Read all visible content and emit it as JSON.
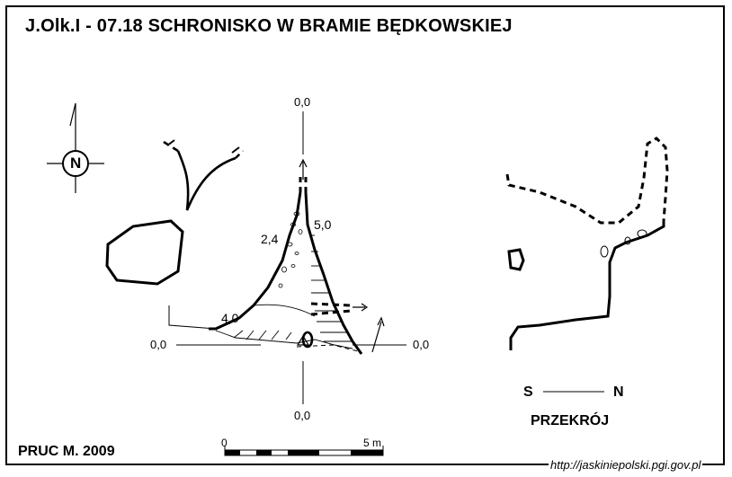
{
  "title": "J.Olk.I - 07.18  SCHRONISKO W BRAMIE BĘDKOWSKIEJ",
  "author": "PRUC M.  2009",
  "source_url": "http://jaskiniepolski.pgi.gov.pl",
  "north_label": "N",
  "plan": {
    "elevation_labels": {
      "top": "0,0",
      "bottom": "0,0",
      "left": "0,0",
      "right": "0,0"
    },
    "depth_labels": [
      "2,4",
      "5,0",
      "4,0"
    ]
  },
  "section": {
    "label": "PRZEKRÓJ",
    "left_dir": "S",
    "right_dir": "N"
  },
  "scale": {
    "start": "0",
    "end": "5 m",
    "segments": 5
  }
}
